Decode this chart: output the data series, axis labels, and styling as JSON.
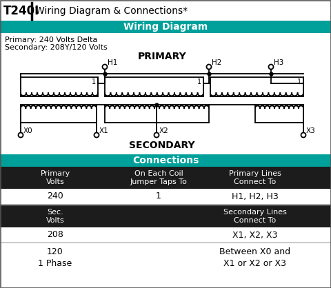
{
  "title_bold": "T240I",
  "title_regular": "Wiring Diagram & Connections*",
  "section1_header": "Wiring Diagram",
  "primary_label": "Primary: 240 Volts Delta",
  "secondary_label": "Secondary: 208Y/120 Volts",
  "primary_word": "PRIMARY",
  "secondary_word": "SECONDARY",
  "section2_header": "Connections",
  "teal_color": "#00a09a",
  "dark_color": "#1c1c1c",
  "line_color": "#000000",
  "col1_header": "Primary\nVolts",
  "col2_header": "On Each Coil\nJumper Taps To",
  "col3_header": "Primary Lines\nConnect To",
  "row1_col1": "240",
  "row1_col2": "1",
  "row1_col3": "H1, H2, H3",
  "col1b_header": "Sec.\nVolts",
  "col3b_header": "Secondary Lines\nConnect To",
  "row2_col1": "208",
  "row2_col3": "X1, X2, X3",
  "row3_col1": "120\n1 Phase",
  "row3_col3": "Between X0 and\nX1 or X2 or X3"
}
